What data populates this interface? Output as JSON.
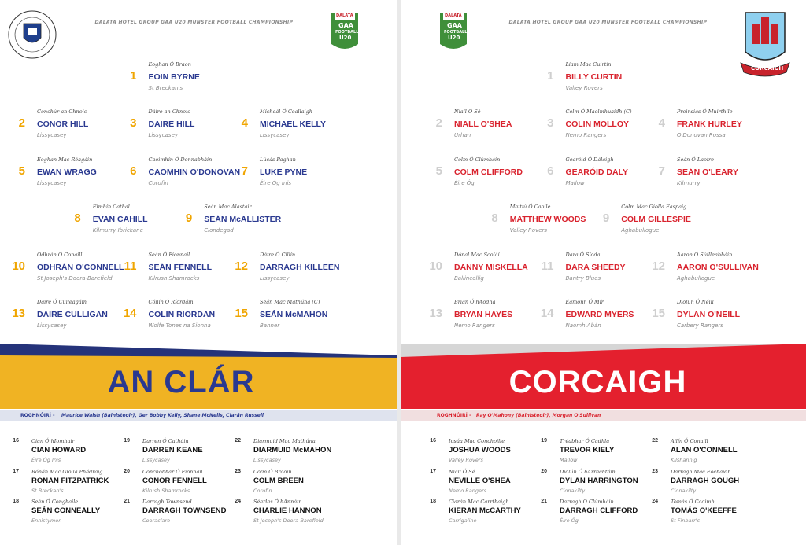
{
  "pages": [
    {
      "header": "DALATA HOTEL GROUP GAA U20 MUNSTER FOOTBALL CHAMPIONSHIP",
      "badge": {
        "sponsor": "DALATA",
        "org": "GAA",
        "sport": "FOOTBALL",
        "grade": "U20"
      },
      "team": "AN CLÁR",
      "management": {
        "label": "ROGHNÓIRÍ -",
        "names": "Maurice Walsh (Bainisteoir), Ger Bobby Kelly, Shane McNelis, Ciarán Russell"
      },
      "starters": [
        {
          "number": 1,
          "irish": "Eoghan Ó Braon",
          "name": "EOIN BYRNE",
          "club": "St Breckan's"
        },
        {
          "number": 2,
          "irish": "Conchúr an Chnoic",
          "name": "CONOR HILL",
          "club": "Lissycasey"
        },
        {
          "number": 3,
          "irish": "Dáire an Chnoic",
          "name": "DAIRE HILL",
          "club": "Lissycasey"
        },
        {
          "number": 4,
          "irish": "Mícheál Ó Ceallaigh",
          "name": "MICHAEL KELLY",
          "club": "Lissycasey"
        },
        {
          "number": 5,
          "irish": "Eoghan Mac Réagáin",
          "name": "EWAN WRAGG",
          "club": "Lissycasey"
        },
        {
          "number": 6,
          "irish": "Caoimhín Ó Donnabháin",
          "name": "CAOMHIN O'DONOVAN",
          "club": "Corofin"
        },
        {
          "number": 7,
          "irish": "Lúcás Paghan",
          "name": "LUKE PYNE",
          "club": "Éire Óg Inis"
        },
        {
          "number": 8,
          "irish": "Éimhín Cathal",
          "name": "EVAN CAHILL",
          "club": "Kilmurry Ibrickane"
        },
        {
          "number": 9,
          "irish": "Seán Mac Alastair",
          "name": "SEÁN McALLISTER",
          "club": "Clondegad"
        },
        {
          "number": 10,
          "irish": "Odhrán Ó Conaill",
          "name": "ODHRÁN O'CONNELL",
          "club": "St Joseph's Doora-Barefield"
        },
        {
          "number": 11,
          "irish": "Seán Ó Fionnail",
          "name": "SEÁN FENNELL",
          "club": "Kilrush Shamrocks"
        },
        {
          "number": 12,
          "irish": "Dáire Ó Cillín",
          "name": "DARRAGH KILLEEN",
          "club": "Lissycasey"
        },
        {
          "number": 13,
          "irish": "Daire Ó Cuileagáin",
          "name": "DAIRE CULLIGAN",
          "club": "Lissycasey"
        },
        {
          "number": 14,
          "irish": "Cóilín Ó Ríordáin",
          "name": "COLIN RIORDAN",
          "club": "Wolfe Tones na Sionna"
        },
        {
          "number": 15,
          "irish": "Seán Mac Mathúna (C)",
          "name": "SEÁN McMAHON",
          "club": "Banner"
        }
      ],
      "subs": [
        {
          "number": 16,
          "irish": "Cian Ó hIomhair",
          "name": "CIAN HOWARD",
          "club": "Éire Óg Inis"
        },
        {
          "number": 17,
          "irish": "Rónán Mac Giolla Phádraig",
          "name": "RONAN FITZPATRICK",
          "club": "St Breckan's"
        },
        {
          "number": 18,
          "irish": "Seán Ó Conghaile",
          "name": "SEÁN CONNEALLY",
          "club": "Ennistymon"
        },
        {
          "number": 19,
          "irish": "Darren Ó Catháin",
          "name": "DARREN KEANE",
          "club": "Lissycasey"
        },
        {
          "number": 20,
          "irish": "Conchobhar Ó Fionnail",
          "name": "CONOR FENNELL",
          "club": "Kilrush Shamrocks"
        },
        {
          "number": 21,
          "irish": "Darragh Townsend",
          "name": "DARRAGH TOWNSEND",
          "club": "Cooraclare"
        },
        {
          "number": 22,
          "irish": "Diarmuid Mac Mathúna",
          "name": "DIARMUID McMAHON",
          "club": "Lissycasey"
        },
        {
          "number": 23,
          "irish": "Colm Ó Braoin",
          "name": "COLM BREEN",
          "club": "Corofin"
        },
        {
          "number": 24,
          "irish": "Séarlas Ó hAnnáin",
          "name": "CHARLIE HANNON",
          "club": "St Joseph's Doora-Barefield"
        }
      ]
    },
    {
      "header": "DALATA HOTEL GROUP GAA U20 MUNSTER FOOTBALL CHAMPIONSHIP",
      "badge": {
        "sponsor": "DALATA",
        "org": "GAA",
        "sport": "FOOTBALL",
        "grade": "U20"
      },
      "team": "CORCAIGH",
      "crest_ribbon": "CORCAIGH",
      "management": {
        "label": "ROGHNÓIRÍ -",
        "names": "Ray O'Mahony (Bainisteoir), Morgan O'Sullivan"
      },
      "starters": [
        {
          "number": 1,
          "irish": "Liam Mac Cuirtín",
          "name": "BILLY CURTIN",
          "club": "Valley Rovers"
        },
        {
          "number": 2,
          "irish": "Niall Ó Sé",
          "name": "NIALL O'SHEA",
          "club": "Urhan"
        },
        {
          "number": 3,
          "irish": "Colm Ó Maolmhuaidh (C)",
          "name": "COLIN MOLLOY",
          "club": "Nemo Rangers"
        },
        {
          "number": 4,
          "irish": "Proinsias Ó Muirthile",
          "name": "FRANK HURLEY",
          "club": "O'Donovan Rossa"
        },
        {
          "number": 5,
          "irish": "Colm Ó Clúmháin",
          "name": "COLM CLIFFORD",
          "club": "Éire Óg"
        },
        {
          "number": 6,
          "irish": "Gearóid Ó Dálaigh",
          "name": "GEARÓID DALY",
          "club": "Mallow"
        },
        {
          "number": 7,
          "irish": "Seán Ó Laoire",
          "name": "SEÁN O'LEARY",
          "club": "Kilmurry"
        },
        {
          "number": 8,
          "irish": "Maitiú Ó Caoile",
          "name": "MATTHEW WOODS",
          "club": "Valley Rovers"
        },
        {
          "number": 9,
          "irish": "Colm Mac Giolla Easpaig",
          "name": "COLM GILLESPIE",
          "club": "Aghabullogue"
        },
        {
          "number": 10,
          "irish": "Dónal Mac Scoláí",
          "name": "DANNY MISKELLA",
          "club": "Ballincollig"
        },
        {
          "number": 11,
          "irish": "Dara Ó Síoda",
          "name": "DARA SHEEDY",
          "club": "Bantry Blues"
        },
        {
          "number": 12,
          "irish": "Aaron Ó Súilleabháin",
          "name": "AARON O'SULLIVAN",
          "club": "Aghabullogue"
        },
        {
          "number": 13,
          "irish": "Brian Ó hAodha",
          "name": "BRYAN HAYES",
          "club": "Nemo Rangers"
        },
        {
          "number": 14,
          "irish": "Éamonn Ó Mír",
          "name": "EDWARD MYERS",
          "club": "Naomh Abán"
        },
        {
          "number": 15,
          "irish": "Diolún Ó Néill",
          "name": "DYLAN O'NEILL",
          "club": "Carbery Rangers"
        }
      ],
      "subs": [
        {
          "number": 16,
          "irish": "Iosúa Mac Conchoille",
          "name": "JOSHUA WOODS",
          "club": "Valley Rovers"
        },
        {
          "number": 17,
          "irish": "Niall Ó Sé",
          "name": "NEVILLE O'SHEA",
          "club": "Nemo Rangers"
        },
        {
          "number": 18,
          "irish": "Ciarán Mac Carrthaigh",
          "name": "KIERAN McCARTHY",
          "club": "Carrigaline"
        },
        {
          "number": 19,
          "irish": "Tréabhar Ó Cadhla",
          "name": "TREVOR KIELY",
          "club": "Mallow"
        },
        {
          "number": 20,
          "irish": "Diolún Ó hArrachtáin",
          "name": "DYLAN HARRINGTON",
          "club": "Clonakilty"
        },
        {
          "number": 21,
          "irish": "Darragh Ó Clúmháin",
          "name": "DARRAGH CLIFFORD",
          "club": "Éire Óg"
        },
        {
          "number": 22,
          "irish": "Ailín Ó Conaill",
          "name": "ALAN O'CONNELL",
          "club": "Kilshannig"
        },
        {
          "number": 23,
          "irish": "Darragh Mac Eochaidh",
          "name": "DARRAGH GOUGH",
          "club": "Clonakilty"
        },
        {
          "number": 24,
          "irish": "Tomás Ó Caoimh",
          "name": "TOMÁS O'KEEFFE",
          "club": "St Finbarr's"
        }
      ]
    }
  ]
}
